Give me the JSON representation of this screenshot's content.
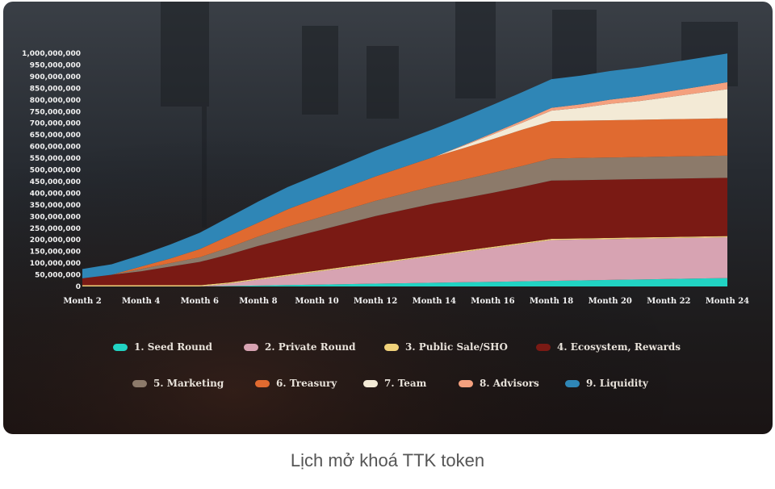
{
  "caption": "Lịch mở khoá TTK token",
  "chart_data": {
    "type": "area",
    "stacked": true,
    "x": [
      2,
      3,
      4,
      5,
      6,
      7,
      8,
      9,
      10,
      11,
      12,
      13,
      14,
      15,
      16,
      17,
      18,
      19,
      20,
      21,
      22,
      23,
      24
    ],
    "x_tick_labels": [
      "Month 2",
      "Month 4",
      "Month 6",
      "Month 8",
      "Month 10",
      "Month 12",
      "Month 14",
      "Month 16",
      "Month 18",
      "Month 20",
      "Month 22",
      "Month 24"
    ],
    "x_ticks": [
      2,
      4,
      6,
      8,
      10,
      12,
      14,
      16,
      18,
      20,
      22,
      24
    ],
    "y_ticks": [
      0,
      50000000,
      100000000,
      150000000,
      200000000,
      250000000,
      300000000,
      350000000,
      400000000,
      450000000,
      500000000,
      550000000,
      600000000,
      650000000,
      700000000,
      750000000,
      800000000,
      850000000,
      900000000,
      950000000,
      1000000000
    ],
    "y_tick_labels": [
      "0",
      "50,000,000",
      "100,000,000",
      "150,000,000",
      "200,000,000",
      "250,000,000",
      "300,000,000",
      "350,000,000",
      "400,000,000",
      "450,000,000",
      "500,000,000",
      "550,000,000",
      "600,000,000",
      "650,000,000",
      "700,000,000",
      "750,000,000",
      "800,000,000",
      "850,000,000",
      "900,000,000",
      "950,000,000",
      "1,000,000,000"
    ],
    "ylim": [
      0,
      1000000000
    ],
    "grid": false,
    "legend_position": "bottom",
    "series": [
      {
        "name": "1. Seed Round",
        "color": "#21d3c3",
        "values": [
          0,
          0,
          0,
          0,
          0,
          2000000,
          4000000,
          6000000,
          8000000,
          10000000,
          12000000,
          14000000,
          16000000,
          18000000,
          20000000,
          22000000,
          24000000,
          26000000,
          28000000,
          30000000,
          32000000,
          34000000,
          36000000
        ]
      },
      {
        "name": "2. Private Round",
        "color": "#d7a3b2",
        "values": [
          0,
          0,
          0,
          0,
          0,
          10000000,
          25000000,
          40000000,
          55000000,
          70000000,
          85000000,
          100000000,
          115000000,
          130000000,
          145000000,
          160000000,
          175000000,
          175000000,
          175000000,
          175000000,
          175000000,
          175000000,
          175000000
        ]
      },
      {
        "name": "3. Public Sale/SHO",
        "color": "#f0d27a",
        "values": [
          5000000,
          5000000,
          5000000,
          5000000,
          5000000,
          5000000,
          5000000,
          5000000,
          5000000,
          5000000,
          5000000,
          5000000,
          5000000,
          5000000,
          5000000,
          5000000,
          5000000,
          5000000,
          5000000,
          5000000,
          5000000,
          5000000,
          5000000
        ]
      },
      {
        "name": "4. Ecosystem, Rewards",
        "color": "#7a1a14",
        "values": [
          30000000,
          45000000,
          60000000,
          80000000,
          100000000,
          120000000,
          140000000,
          155000000,
          170000000,
          185000000,
          200000000,
          210000000,
          220000000,
          225000000,
          232000000,
          240000000,
          250000000,
          250000000,
          250000000,
          250000000,
          250000000,
          250000000,
          250000000
        ]
      },
      {
        "name": "5. Marketing",
        "color": "#8c7a6a",
        "values": [
          0,
          0,
          10000000,
          15000000,
          20000000,
          30000000,
          40000000,
          50000000,
          55000000,
          60000000,
          65000000,
          70000000,
          75000000,
          80000000,
          85000000,
          90000000,
          95000000,
          95000000,
          95000000,
          95000000,
          95000000,
          95000000,
          95000000
        ]
      },
      {
        "name": "6. Treasury",
        "color": "#e06a30",
        "values": [
          0,
          0,
          10000000,
          20000000,
          35000000,
          50000000,
          60000000,
          75000000,
          85000000,
          95000000,
          105000000,
          115000000,
          125000000,
          135000000,
          145000000,
          155000000,
          160000000,
          160000000,
          160000000,
          160000000,
          160000000,
          160000000,
          160000000
        ]
      },
      {
        "name": "7. Team",
        "color": "#f3ead6",
        "values": [
          0,
          0,
          0,
          0,
          0,
          0,
          0,
          0,
          0,
          0,
          0,
          0,
          0,
          10000000,
          20000000,
          30000000,
          45000000,
          55000000,
          70000000,
          80000000,
          95000000,
          110000000,
          125000000
        ]
      },
      {
        "name": "8. Advisors",
        "color": "#f4a07e",
        "values": [
          0,
          0,
          0,
          0,
          0,
          0,
          0,
          0,
          0,
          0,
          0,
          0,
          0,
          3000000,
          6000000,
          9000000,
          12000000,
          15000000,
          18000000,
          21000000,
          24000000,
          27000000,
          30000000
        ]
      },
      {
        "name": "9. Liquidity",
        "color": "#2f86b6",
        "values": [
          40000000,
          45000000,
          50000000,
          60000000,
          70000000,
          80000000,
          90000000,
          95000000,
          100000000,
          105000000,
          110000000,
          115000000,
          120000000,
          120000000,
          121000000,
          122000000,
          123000000,
          123000000,
          123000000,
          123000000,
          123000000,
          123000000,
          123000000
        ]
      }
    ]
  }
}
